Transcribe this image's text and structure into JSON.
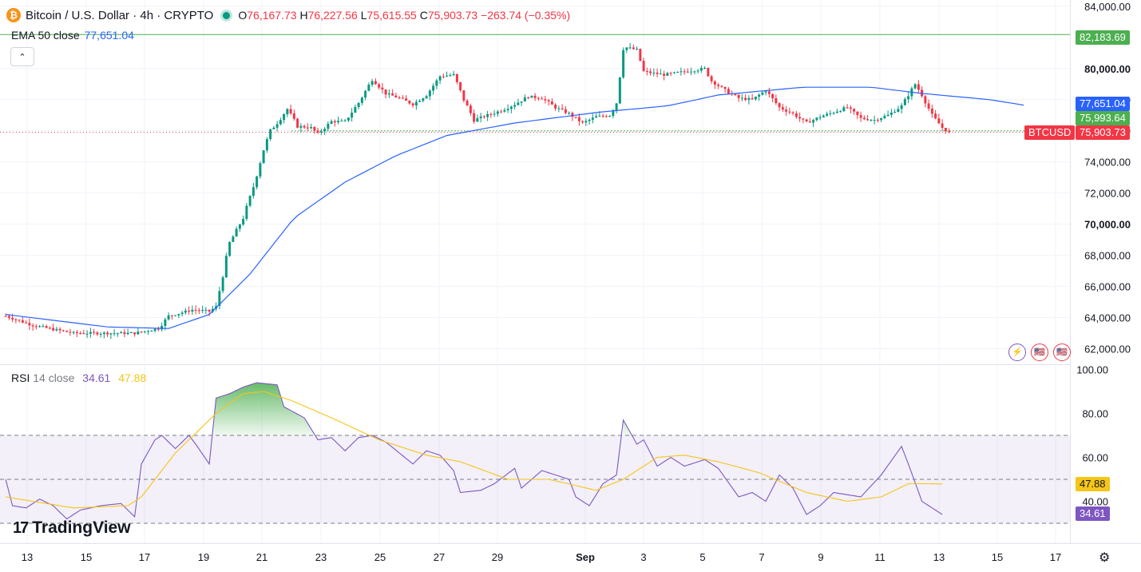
{
  "header": {
    "coin_glyph": "₿",
    "symbol": "Bitcoin / U.S. Dollar · 4h · CRYPTO",
    "open_label": "O",
    "open": "76,167.73",
    "high_label": "H",
    "high": "76,227.56",
    "low_label": "L",
    "low": "75,615.55",
    "close_label": "C",
    "close": "75,903.73",
    "change": "−263.74 (−0.35%)"
  },
  "ema": {
    "label": "EMA 50 close",
    "value": "77,651.04"
  },
  "collapse_glyph": "⌃",
  "rsi": {
    "label": "RSI",
    "params": "14 close",
    "value": "34.61",
    "ma_value": "47.88"
  },
  "brand": {
    "logo": "17",
    "name": "TradingView"
  },
  "events": {
    "a": "⚡",
    "b": "🇺🇸",
    "c": "🇺🇸"
  },
  "gear_glyph": "⚙",
  "badges": {
    "resistance": "82,183.69",
    "ema": "77,651.04",
    "green": "75,993.64",
    "symbol": "BTCUSD",
    "last": "75,903.73",
    "rsi_ma": "47.88",
    "rsi": "34.61"
  },
  "colors": {
    "up": "#089981",
    "down": "#f23645",
    "ema": "#2962ff",
    "rsi": "#7e57c2",
    "rsi_ma": "#f5c518",
    "resistance": "#4caf50"
  },
  "chart_data": [
    {
      "type": "candlestick",
      "title": "Bitcoin / U.S. Dollar · 4h · CRYPTO",
      "x_ticks": [
        "13",
        "15",
        "17",
        "19",
        "21",
        "23",
        "25",
        "27",
        "29",
        "Sep",
        "3",
        "5",
        "7",
        "9",
        "11",
        "13",
        "15",
        "17"
      ],
      "y_ticks": [
        "84,000.00",
        "80,000.00",
        "78,000.00",
        "76,000.00",
        "74,000.00",
        "72,000.00",
        "70,000.00",
        "68,000.00",
        "66,000.00",
        "64,000.00",
        "62,000.00"
      ],
      "ylim": [
        61000,
        84300
      ],
      "horizontal_levels": [
        82183.69,
        75993.64
      ],
      "ema_anchors": [
        [
          0,
          64200
        ],
        [
          30,
          63400
        ],
        [
          48,
          63300
        ],
        [
          60,
          64200
        ],
        [
          72,
          66800
        ],
        [
          85,
          70400
        ],
        [
          100,
          72700
        ],
        [
          115,
          74400
        ],
        [
          130,
          75700
        ],
        [
          150,
          76500
        ],
        [
          175,
          77200
        ],
        [
          195,
          77600
        ],
        [
          210,
          78300
        ],
        [
          235,
          78800
        ],
        [
          255,
          78800
        ],
        [
          270,
          78400
        ],
        [
          290,
          78000
        ],
        [
          300,
          77651
        ]
      ],
      "price_anchors": [
        [
          0,
          64100
        ],
        [
          8,
          63500
        ],
        [
          20,
          63000
        ],
        [
          38,
          63000
        ],
        [
          45,
          63300
        ],
        [
          48,
          64100
        ],
        [
          55,
          64500
        ],
        [
          60,
          64400
        ],
        [
          62,
          64700
        ],
        [
          66,
          68800
        ],
        [
          70,
          70400
        ],
        [
          73,
          72400
        ],
        [
          76,
          74800
        ],
        [
          78,
          76000
        ],
        [
          80,
          76500
        ],
        [
          83,
          77400
        ],
        [
          86,
          76300
        ],
        [
          90,
          76200
        ],
        [
          92,
          75800
        ],
        [
          96,
          76600
        ],
        [
          100,
          76600
        ],
        [
          104,
          77800
        ],
        [
          108,
          79300
        ],
        [
          112,
          78400
        ],
        [
          116,
          78100
        ],
        [
          120,
          77700
        ],
        [
          124,
          78300
        ],
        [
          128,
          79500
        ],
        [
          132,
          79600
        ],
        [
          135,
          78000
        ],
        [
          138,
          76700
        ],
        [
          142,
          77000
        ],
        [
          146,
          77300
        ],
        [
          150,
          77700
        ],
        [
          154,
          78200
        ],
        [
          158,
          78100
        ],
        [
          162,
          77500
        ],
        [
          166,
          77100
        ],
        [
          170,
          76500
        ],
        [
          174,
          76900
        ],
        [
          178,
          77000
        ],
        [
          180,
          77800
        ],
        [
          182,
          81400
        ],
        [
          186,
          81200
        ],
        [
          188,
          79800
        ],
        [
          194,
          79600
        ],
        [
          200,
          79800
        ],
        [
          206,
          80000
        ],
        [
          208,
          79200
        ],
        [
          212,
          78600
        ],
        [
          216,
          78100
        ],
        [
          220,
          78000
        ],
        [
          224,
          78600
        ],
        [
          228,
          77500
        ],
        [
          232,
          77100
        ],
        [
          236,
          76500
        ],
        [
          240,
          76900
        ],
        [
          244,
          77200
        ],
        [
          248,
          77500
        ],
        [
          252,
          76800
        ],
        [
          256,
          76700
        ],
        [
          260,
          77000
        ],
        [
          264,
          77600
        ],
        [
          268,
          79000
        ],
        [
          270,
          78300
        ],
        [
          273,
          77000
        ],
        [
          276,
          76200
        ],
        [
          278,
          75904
        ]
      ],
      "last_price": 75903.73
    },
    {
      "type": "line",
      "title": "RSI 14 close",
      "y_ticks": [
        "100.00",
        "80.00",
        "60.00",
        "40.00"
      ],
      "ylim": [
        0,
        100
      ],
      "band": [
        30,
        70
      ],
      "midline": 50,
      "rsi_anchors": [
        [
          0,
          50
        ],
        [
          2,
          38
        ],
        [
          6,
          37
        ],
        [
          10,
          41
        ],
        [
          14,
          38
        ],
        [
          18,
          32
        ],
        [
          22,
          36
        ],
        [
          28,
          38
        ],
        [
          34,
          39
        ],
        [
          38,
          33
        ],
        [
          40,
          57
        ],
        [
          44,
          68
        ],
        [
          46,
          70
        ],
        [
          50,
          64
        ],
        [
          54,
          70
        ],
        [
          56,
          66
        ],
        [
          60,
          57
        ],
        [
          62,
          87
        ],
        [
          66,
          89
        ],
        [
          70,
          92
        ],
        [
          74,
          94
        ],
        [
          80,
          93
        ],
        [
          82,
          83
        ],
        [
          88,
          78
        ],
        [
          92,
          68
        ],
        [
          96,
          69
        ],
        [
          100,
          63
        ],
        [
          104,
          69
        ],
        [
          108,
          70
        ],
        [
          112,
          67
        ],
        [
          116,
          62
        ],
        [
          120,
          57
        ],
        [
          124,
          63
        ],
        [
          128,
          61
        ],
        [
          132,
          54
        ],
        [
          134,
          44
        ],
        [
          140,
          45
        ],
        [
          144,
          48
        ],
        [
          150,
          55
        ],
        [
          152,
          46
        ],
        [
          158,
          54
        ],
        [
          162,
          52
        ],
        [
          166,
          50
        ],
        [
          168,
          42
        ],
        [
          172,
          38
        ],
        [
          176,
          48
        ],
        [
          180,
          52
        ],
        [
          182,
          77
        ],
        [
          186,
          66
        ],
        [
          188,
          68
        ],
        [
          192,
          56
        ],
        [
          196,
          60
        ],
        [
          200,
          56
        ],
        [
          206,
          59
        ],
        [
          210,
          55
        ],
        [
          216,
          42
        ],
        [
          220,
          44
        ],
        [
          224,
          40
        ],
        [
          228,
          52
        ],
        [
          232,
          46
        ],
        [
          236,
          34
        ],
        [
          240,
          38
        ],
        [
          244,
          44
        ],
        [
          248,
          43
        ],
        [
          252,
          42
        ],
        [
          258,
          52
        ],
        [
          264,
          65
        ],
        [
          266,
          57
        ],
        [
          270,
          40
        ],
        [
          276,
          34
        ]
      ],
      "rsi_ma_anchors": [
        [
          0,
          42
        ],
        [
          20,
          37
        ],
        [
          36,
          38
        ],
        [
          40,
          42
        ],
        [
          50,
          62
        ],
        [
          62,
          80
        ],
        [
          70,
          89
        ],
        [
          76,
          90
        ],
        [
          84,
          86
        ],
        [
          96,
          78
        ],
        [
          110,
          68
        ],
        [
          124,
          61
        ],
        [
          134,
          58
        ],
        [
          148,
          50
        ],
        [
          160,
          50
        ],
        [
          174,
          45
        ],
        [
          182,
          50
        ],
        [
          192,
          60
        ],
        [
          200,
          61
        ],
        [
          210,
          58
        ],
        [
          222,
          53
        ],
        [
          236,
          44
        ],
        [
          248,
          40
        ],
        [
          258,
          42
        ],
        [
          266,
          48
        ],
        [
          272,
          48
        ],
        [
          276,
          47.88
        ]
      ]
    }
  ]
}
